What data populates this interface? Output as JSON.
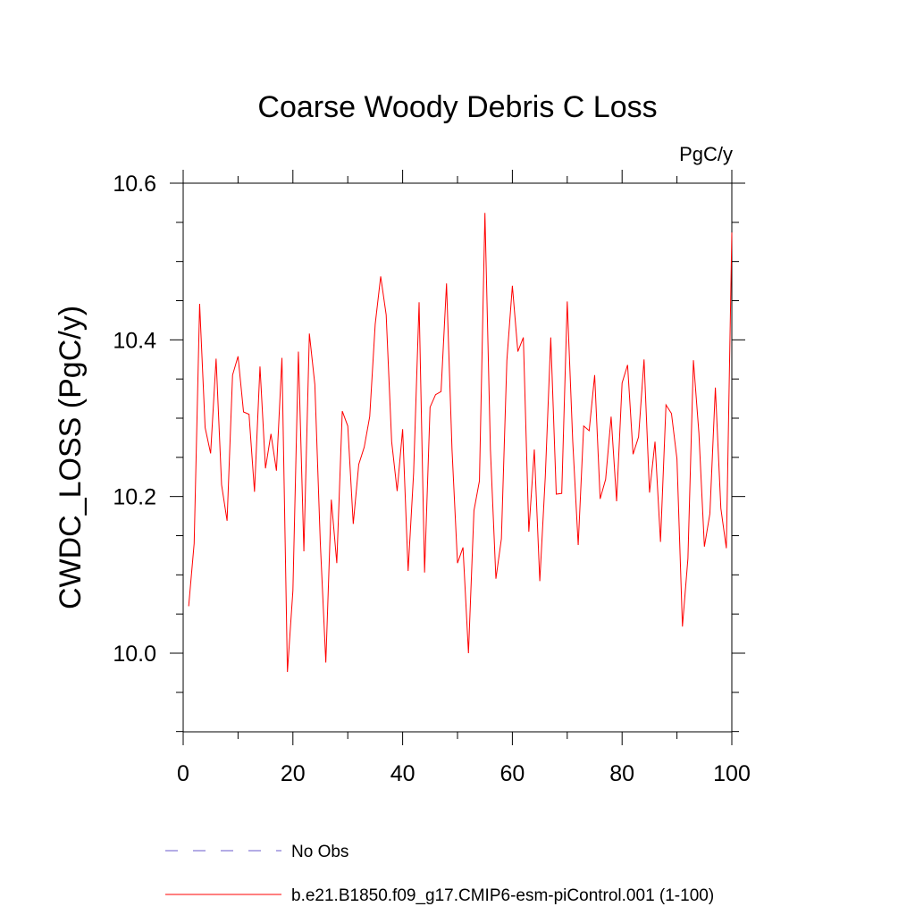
{
  "chart_data": {
    "type": "line",
    "title": "Coarse Woody Debris C Loss",
    "units_label": "PgC/y",
    "ylabel": "CWDC_LOSS  (PgC/y)",
    "xlabel": "",
    "xlim": [
      0,
      100
    ],
    "ylim": [
      9.9,
      10.62
    ],
    "x_ticks": [
      0,
      20,
      40,
      60,
      80,
      100
    ],
    "x_tick_labels": [
      "0",
      "20",
      "40",
      "60",
      "80",
      "100"
    ],
    "y_ticks": [
      10.0,
      10.2,
      10.4,
      10.6
    ],
    "y_tick_labels": [
      "10.0",
      "10.2",
      "10.4",
      "10.6"
    ],
    "grid": false,
    "legend_position": "bottom",
    "legend": [
      {
        "label": "No Obs",
        "color": "#6a5acd",
        "style": "dashed"
      },
      {
        "label": "b.e21.B1850.f09_g17.CMIP6-esm-piControl.001 (1-100)",
        "color": "#ff0000",
        "style": "solid"
      }
    ],
    "series": [
      {
        "name": "b.e21.B1850.f09_g17.CMIP6-esm-piControl.001 (1-100)",
        "color": "#ff0000",
        "x": [
          1,
          2,
          3,
          4,
          5,
          6,
          7,
          8,
          9,
          10,
          11,
          12,
          13,
          14,
          15,
          16,
          17,
          18,
          19,
          20,
          21,
          22,
          23,
          24,
          25,
          26,
          27,
          28,
          29,
          30,
          31,
          32,
          33,
          34,
          35,
          36,
          37,
          38,
          39,
          40,
          41,
          42,
          43,
          44,
          45,
          46,
          47,
          48,
          49,
          50,
          51,
          52,
          53,
          54,
          55,
          56,
          57,
          58,
          59,
          60,
          61,
          62,
          63,
          64,
          65,
          66,
          67,
          68,
          69,
          70,
          71,
          72,
          73,
          74,
          75,
          76,
          77,
          78,
          79,
          80,
          81,
          82,
          83,
          84,
          85,
          86,
          87,
          88,
          89,
          90,
          91,
          92,
          93,
          94,
          95,
          96,
          97,
          98,
          99,
          100
        ],
        "values": [
          10.06,
          10.14,
          10.446,
          10.288,
          10.255,
          10.376,
          10.215,
          10.169,
          10.355,
          10.379,
          10.308,
          10.305,
          10.206,
          10.366,
          10.236,
          10.28,
          10.233,
          10.377,
          9.976,
          10.08,
          10.385,
          10.13,
          10.408,
          10.343,
          10.14,
          9.988,
          10.196,
          10.115,
          10.309,
          10.29,
          10.165,
          10.241,
          10.263,
          10.302,
          10.42,
          10.481,
          10.432,
          10.27,
          10.207,
          10.286,
          10.105,
          10.23,
          10.448,
          10.103,
          10.314,
          10.33,
          10.334,
          10.472,
          10.26,
          10.115,
          10.135,
          10.0,
          10.182,
          10.22,
          10.562,
          10.26,
          10.095,
          10.146,
          10.374,
          10.469,
          10.385,
          10.403,
          10.155,
          10.26,
          10.092,
          10.225,
          10.403,
          10.203,
          10.204,
          10.449,
          10.271,
          10.138,
          10.29,
          10.284,
          10.355,
          10.197,
          10.222,
          10.302,
          10.194,
          10.345,
          10.368,
          10.254,
          10.276,
          10.375,
          10.205,
          10.27,
          10.142,
          10.317,
          10.306,
          10.248,
          10.034,
          10.121,
          10.374,
          10.281,
          10.136,
          10.178,
          10.339,
          10.185,
          10.134,
          10.537
        ]
      }
    ]
  }
}
